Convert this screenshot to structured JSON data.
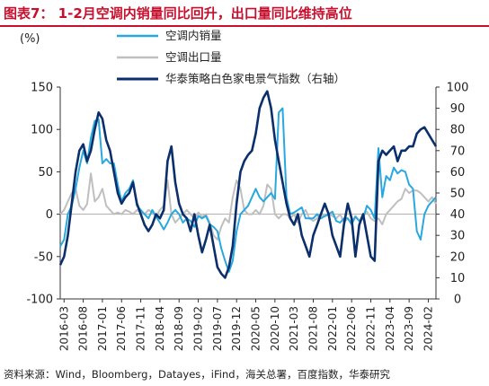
{
  "header": {
    "title": "图表7：   1-2月空调内销量同比回升，出口量同比维持高位"
  },
  "footer": {
    "source": "资料来源：Wind，Bloomberg，Datayes，iFind，海关总署，百度指数，华泰研究"
  },
  "colors": {
    "accent": "#c8102e",
    "domestic": "#29a8e0",
    "export": "#bfbfbf",
    "index": "#0b2f6b"
  },
  "chart_data": {
    "type": "line",
    "left_unit": "(%)",
    "ylim_left": [
      -100,
      150
    ],
    "yticks_left": [
      "150",
      "100",
      "50",
      "0",
      "-50",
      "-100"
    ],
    "ylim_right": [
      0,
      100
    ],
    "yticks_right": [
      "100",
      "90",
      "80",
      "70",
      "60",
      "50",
      "40",
      "30",
      "20",
      "10",
      "0"
    ],
    "x_tick_labels": [
      "2016-03",
      "2016-08",
      "2017-01",
      "2017-06",
      "2017-11",
      "2018-04",
      "2018-09",
      "2019-02",
      "2019-07",
      "2019-12",
      "2020-05",
      "2020-10",
      "2021-03",
      "2021-08",
      "2022-01",
      "2022-06",
      "2022-11",
      "2023-04",
      "2023-09",
      "2024-02"
    ],
    "legend_position": "top",
    "series": [
      {
        "name": "空调内销量",
        "axis": "left",
        "values": [
          [
            0,
            -38
          ],
          [
            1,
            -30
          ],
          [
            2,
            0
          ],
          [
            3,
            10
          ],
          [
            4,
            30
          ],
          [
            5,
            55
          ],
          [
            6,
            75
          ],
          [
            7,
            60
          ],
          [
            8,
            90
          ],
          [
            9,
            110
          ],
          [
            10,
            112
          ],
          [
            11,
            60
          ],
          [
            12,
            65
          ],
          [
            13,
            60
          ],
          [
            14,
            60
          ],
          [
            15,
            35
          ],
          [
            16,
            15
          ],
          [
            17,
            25
          ],
          [
            18,
            30
          ],
          [
            19,
            40
          ],
          [
            20,
            10
          ],
          [
            21,
            5
          ],
          [
            22,
            0
          ],
          [
            23,
            -5
          ],
          [
            24,
            5
          ],
          [
            25,
            -3
          ],
          [
            26,
            -10
          ],
          [
            27,
            -18
          ],
          [
            28,
            -10
          ],
          [
            29,
            0
          ],
          [
            30,
            5
          ],
          [
            31,
            0
          ],
          [
            32,
            -10
          ],
          [
            33,
            -5
          ],
          [
            34,
            -8
          ],
          [
            35,
            -15
          ],
          [
            36,
            -2
          ],
          [
            37,
            -5
          ],
          [
            38,
            -2
          ],
          [
            39,
            -12
          ],
          [
            40,
            -15
          ],
          [
            41,
            -20
          ],
          [
            42,
            -40
          ],
          [
            43,
            -55
          ],
          [
            44,
            -68
          ],
          [
            45,
            -55
          ],
          [
            46,
            -20
          ],
          [
            47,
            0
          ],
          [
            48,
            5
          ],
          [
            49,
            10
          ],
          [
            50,
            20
          ],
          [
            51,
            30
          ],
          [
            52,
            20
          ],
          [
            53,
            15
          ],
          [
            54,
            20
          ],
          [
            55,
            25
          ],
          [
            56,
            18
          ],
          [
            57,
            120
          ],
          [
            58,
            125
          ],
          [
            59,
            20
          ],
          [
            60,
            0
          ],
          [
            61,
            2
          ],
          [
            62,
            5
          ],
          [
            63,
            8
          ],
          [
            64,
            -5
          ],
          [
            65,
            -5
          ],
          [
            66,
            -5
          ],
          [
            67,
            0
          ],
          [
            68,
            -5
          ],
          [
            69,
            -2
          ],
          [
            70,
            0
          ],
          [
            71,
            3
          ],
          [
            72,
            -8
          ],
          [
            73,
            -10
          ],
          [
            74,
            -5
          ],
          [
            75,
            -5
          ],
          [
            76,
            -12
          ],
          [
            77,
            -3
          ],
          [
            78,
            -8
          ],
          [
            79,
            -5
          ],
          [
            80,
            10
          ],
          [
            81,
            5
          ],
          [
            82,
            -5
          ],
          [
            83,
            78
          ],
          [
            84,
            20
          ],
          [
            85,
            45
          ],
          [
            86,
            40
          ],
          [
            87,
            55
          ],
          [
            88,
            48
          ],
          [
            89,
            52
          ],
          [
            90,
            50
          ],
          [
            91,
            35
          ],
          [
            92,
            30
          ],
          [
            93,
            -20
          ],
          [
            94,
            -30
          ],
          [
            95,
            0
          ],
          [
            96,
            10
          ],
          [
            97,
            15
          ],
          [
            98,
            20
          ]
        ]
      },
      {
        "name": "空调出口量",
        "axis": "left",
        "values": [
          [
            0,
            0
          ],
          [
            1,
            5
          ],
          [
            2,
            15
          ],
          [
            3,
            25
          ],
          [
            4,
            30
          ],
          [
            5,
            10
          ],
          [
            6,
            5
          ],
          [
            7,
            12
          ],
          [
            8,
            48
          ],
          [
            9,
            15
          ],
          [
            10,
            20
          ],
          [
            11,
            30
          ],
          [
            12,
            10
          ],
          [
            13,
            5
          ],
          [
            14,
            0
          ],
          [
            15,
            2
          ],
          [
            16,
            0
          ],
          [
            17,
            5
          ],
          [
            18,
            3
          ],
          [
            19,
            0
          ],
          [
            20,
            5
          ],
          [
            21,
            2
          ],
          [
            22,
            0
          ],
          [
            23,
            5
          ],
          [
            24,
            2
          ],
          [
            25,
            -3
          ],
          [
            26,
            5
          ],
          [
            27,
            10
          ],
          [
            28,
            40
          ],
          [
            29,
            0
          ],
          [
            30,
            -10
          ],
          [
            31,
            -5
          ],
          [
            32,
            0
          ],
          [
            33,
            5
          ],
          [
            34,
            0
          ],
          [
            35,
            -5
          ],
          [
            36,
            2
          ],
          [
            37,
            -3
          ],
          [
            38,
            0
          ],
          [
            39,
            -10
          ],
          [
            40,
            -25
          ],
          [
            41,
            -30
          ],
          [
            42,
            -15
          ],
          [
            43,
            -5
          ],
          [
            44,
            -10
          ],
          [
            45,
            20
          ],
          [
            46,
            40
          ],
          [
            47,
            30
          ],
          [
            48,
            5
          ],
          [
            49,
            0
          ],
          [
            50,
            0
          ],
          [
            51,
            5
          ],
          [
            52,
            0
          ],
          [
            53,
            10
          ],
          [
            54,
            35
          ],
          [
            55,
            30
          ],
          [
            56,
            0
          ],
          [
            57,
            -5
          ],
          [
            58,
            0
          ],
          [
            59,
            0
          ],
          [
            60,
            -5
          ],
          [
            61,
            0
          ],
          [
            62,
            -10
          ],
          [
            63,
            0
          ],
          [
            64,
            5
          ],
          [
            65,
            -5
          ],
          [
            66,
            -8
          ],
          [
            67,
            -5
          ],
          [
            68,
            0
          ],
          [
            69,
            -3
          ],
          [
            70,
            0
          ],
          [
            71,
            -2
          ],
          [
            72,
            -5
          ],
          [
            73,
            0
          ],
          [
            74,
            -10
          ],
          [
            75,
            -5
          ],
          [
            76,
            -10
          ],
          [
            77,
            -2
          ],
          [
            78,
            -8
          ],
          [
            79,
            0
          ],
          [
            80,
            3
          ],
          [
            81,
            -5
          ],
          [
            82,
            -8
          ],
          [
            83,
            -5
          ],
          [
            84,
            -12
          ],
          [
            85,
            0
          ],
          [
            86,
            5
          ],
          [
            87,
            10
          ],
          [
            88,
            15
          ],
          [
            89,
            18
          ],
          [
            90,
            30
          ],
          [
            91,
            25
          ],
          [
            92,
            28
          ],
          [
            93,
            28
          ],
          [
            94,
            25
          ],
          [
            95,
            20
          ],
          [
            96,
            15
          ],
          [
            97,
            20
          ],
          [
            98,
            12
          ]
        ]
      },
      {
        "name": "华泰策略白色家电景气指数（右轴）",
        "axis": "right",
        "values": [
          [
            0,
            16
          ],
          [
            1,
            20
          ],
          [
            2,
            30
          ],
          [
            3,
            45
          ],
          [
            4,
            60
          ],
          [
            5,
            70
          ],
          [
            6,
            73
          ],
          [
            7,
            65
          ],
          [
            8,
            70
          ],
          [
            9,
            80
          ],
          [
            10,
            88
          ],
          [
            11,
            85
          ],
          [
            12,
            75
          ],
          [
            13,
            70
          ],
          [
            14,
            60
          ],
          [
            15,
            50
          ],
          [
            16,
            45
          ],
          [
            17,
            48
          ],
          [
            18,
            50
          ],
          [
            19,
            55
          ],
          [
            20,
            45
          ],
          [
            21,
            40
          ],
          [
            22,
            35
          ],
          [
            23,
            32
          ],
          [
            24,
            35
          ],
          [
            25,
            40
          ],
          [
            26,
            38
          ],
          [
            27,
            42
          ],
          [
            28,
            65
          ],
          [
            29,
            72
          ],
          [
            30,
            55
          ],
          [
            31,
            45
          ],
          [
            32,
            40
          ],
          [
            33,
            38
          ],
          [
            34,
            32
          ],
          [
            35,
            40
          ],
          [
            36,
            30
          ],
          [
            37,
            22
          ],
          [
            38,
            28
          ],
          [
            39,
            35
          ],
          [
            40,
            25
          ],
          [
            41,
            15
          ],
          [
            42,
            12
          ],
          [
            43,
            10
          ],
          [
            44,
            15
          ],
          [
            45,
            25
          ],
          [
            46,
            45
          ],
          [
            47,
            60
          ],
          [
            48,
            65
          ],
          [
            49,
            68
          ],
          [
            50,
            70
          ],
          [
            51,
            78
          ],
          [
            52,
            90
          ],
          [
            53,
            95
          ],
          [
            54,
            98
          ],
          [
            55,
            90
          ],
          [
            56,
            75
          ],
          [
            57,
            65
          ],
          [
            58,
            55
          ],
          [
            59,
            45
          ],
          [
            60,
            38
          ],
          [
            61,
            35
          ],
          [
            62,
            40
          ],
          [
            63,
            30
          ],
          [
            64,
            25
          ],
          [
            65,
            20
          ],
          [
            66,
            30
          ],
          [
            67,
            35
          ],
          [
            68,
            40
          ],
          [
            69,
            45
          ],
          [
            70,
            40
          ],
          [
            71,
            30
          ],
          [
            72,
            25
          ],
          [
            73,
            20
          ],
          [
            74,
            35
          ],
          [
            75,
            45
          ],
          [
            76,
            38
          ],
          [
            77,
            20
          ],
          [
            78,
            35
          ],
          [
            79,
            40
          ],
          [
            80,
            30
          ],
          [
            81,
            20
          ],
          [
            82,
            18
          ],
          [
            83,
            65
          ],
          [
            84,
            70
          ],
          [
            85,
            68
          ],
          [
            86,
            70
          ],
          [
            87,
            72
          ],
          [
            88,
            65
          ],
          [
            89,
            70
          ],
          [
            90,
            70
          ],
          [
            91,
            72
          ],
          [
            92,
            72
          ],
          [
            93,
            78
          ],
          [
            94,
            80
          ],
          [
            95,
            81
          ],
          [
            96,
            78
          ],
          [
            97,
            75
          ],
          [
            98,
            72
          ]
        ]
      }
    ]
  }
}
